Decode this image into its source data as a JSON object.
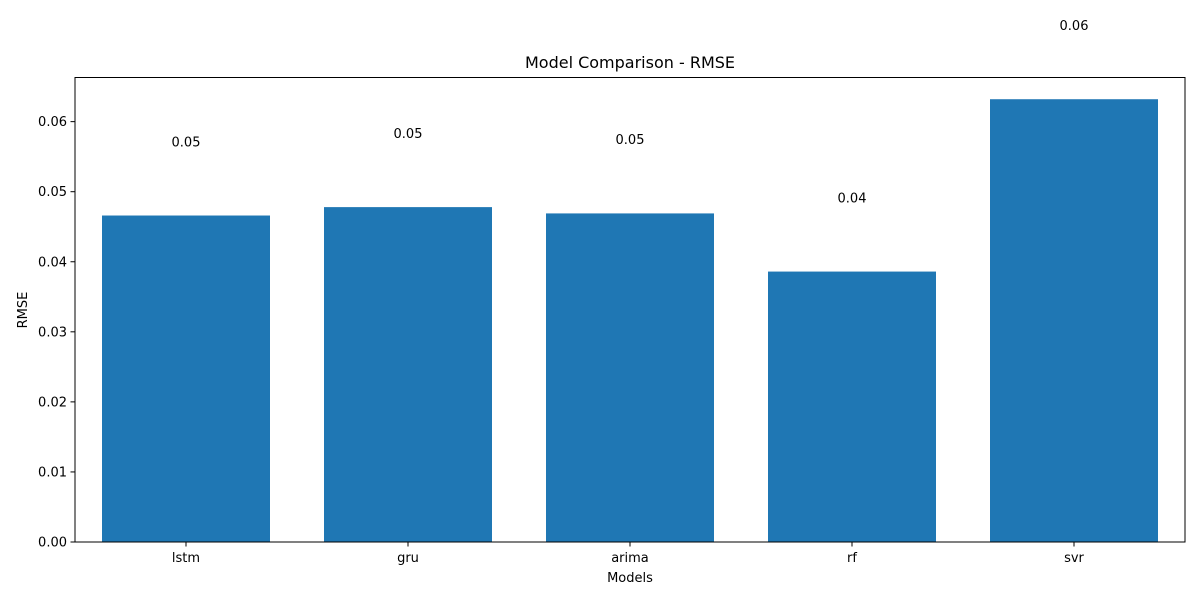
{
  "chart_data": {
    "type": "bar",
    "title": "Model Comparison - RMSE",
    "xlabel": "Models",
    "ylabel": "RMSE",
    "categories": [
      "lstm",
      "gru",
      "arima",
      "rf",
      "svr"
    ],
    "values": [
      0.0466,
      0.0478,
      0.0469,
      0.0386,
      0.0632
    ],
    "data_labels": [
      "0.05",
      "0.05",
      "0.05",
      "0.04",
      "0.06"
    ],
    "ylim": [
      0,
      0.0663
    ],
    "yticks": [
      0.0,
      0.01,
      0.02,
      0.03,
      0.04,
      0.05,
      0.06
    ],
    "ytick_labels": [
      "0.00",
      "0.01",
      "0.02",
      "0.03",
      "0.04",
      "0.05",
      "0.06"
    ],
    "grid": false,
    "legend": "none",
    "bar_color": "#1f77b4"
  }
}
